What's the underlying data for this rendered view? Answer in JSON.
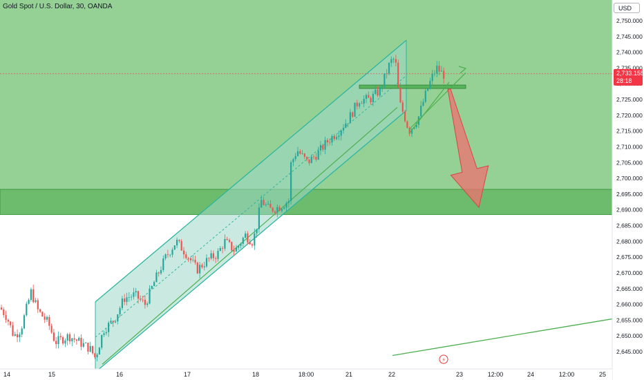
{
  "header": {
    "symbol_title": "Gold Spot / U.S. Dollar, 30, OANDA",
    "currency_button": "USD"
  },
  "price_tag": {
    "price": "2,733.155",
    "countdown": "28:18"
  },
  "colors": {
    "bull": "#26a69a",
    "bear": "#ef5350",
    "bg_green": "#8fcf8f",
    "zone_green": "#6dbb6d",
    "channel": "#2bb5a0",
    "channel_fill": "#9ed8c8",
    "trendline": "#4caf50",
    "arrow_red": "#f07070",
    "price_tag_bg": "#f23645"
  },
  "chart_data": {
    "type": "candlestick",
    "title": "Gold Spot / U.S. Dollar, 30, OANDA",
    "ylim": [
      2642,
      2757
    ],
    "y_ticks": [
      "2,750.000",
      "2,745.000",
      "2,740.000",
      "2,735.000",
      "2,730.000",
      "2,725.000",
      "2,720.000",
      "2,715.000",
      "2,710.000",
      "2,705.000",
      "2,700.000",
      "2,695.000",
      "2,690.000",
      "2,685.000",
      "2,680.000",
      "2,675.000",
      "2,670.000",
      "2,665.000",
      "2,660.000",
      "2,655.000",
      "2,650.000",
      "2,645.000"
    ],
    "y_values": [
      2750,
      2745,
      2740,
      2735,
      2730,
      2725,
      2720,
      2715,
      2710,
      2705,
      2700,
      2695,
      2690,
      2685,
      2680,
      2675,
      2670,
      2665,
      2660,
      2655,
      2650,
      2645
    ],
    "x_ticks": [
      "14",
      "15",
      "16",
      "17",
      "18",
      "18:00",
      "21",
      "22",
      "23",
      "12:00",
      "24",
      "12:00",
      "25"
    ],
    "x_tick_pos": [
      10,
      75,
      173,
      271,
      370,
      443,
      505,
      567,
      665,
      717,
      768,
      820,
      872
    ],
    "hidden_y_label": "2,730.000",
    "background_zone": {
      "from": 2757,
      "to": 2642
    },
    "support_zone": {
      "top": 2696.5,
      "bottom": 2688.5
    },
    "resistance_box": {
      "top": 2729.6,
      "bottom": 2728.7
    },
    "channel": {
      "upper": [
        [
          138,
          2660.8
        ],
        [
          588,
          2743.8
        ]
      ],
      "lower": [
        [
          138,
          2638.5
        ],
        [
          588,
          2721.5
        ]
      ],
      "mid": [
        [
          138,
          2649.6
        ],
        [
          588,
          2732.6
        ]
      ]
    },
    "trendline": [
      [
        568,
        2643.8
      ],
      [
        886,
        2655.4
      ]
    ],
    "triangle": {
      "upper": [
        [
          592,
          2715.5
        ],
        [
          674,
          2733.5
        ]
      ],
      "lower": [
        [
          592,
          2714.2
        ],
        [
          650,
          2730.5
        ]
      ]
    },
    "forecast_arrow": {
      "from": [
        650,
        2728.3
      ],
      "to": [
        693,
        2690.8
      ]
    },
    "candle_path": [
      [
        0,
        2659
      ],
      [
        10,
        2656
      ],
      [
        20,
        2650
      ],
      [
        30,
        2652
      ],
      [
        45,
        2664
      ],
      [
        55,
        2658
      ],
      [
        70,
        2654
      ],
      [
        80,
        2648
      ],
      [
        100,
        2650
      ],
      [
        115,
        2648
      ],
      [
        130,
        2646
      ],
      [
        138,
        2643
      ],
      [
        150,
        2652
      ],
      [
        165,
        2655
      ],
      [
        180,
        2662
      ],
      [
        195,
        2663
      ],
      [
        210,
        2660
      ],
      [
        225,
        2668
      ],
      [
        240,
        2675
      ],
      [
        255,
        2680
      ],
      [
        270,
        2676
      ],
      [
        285,
        2671
      ],
      [
        300,
        2674
      ],
      [
        315,
        2676
      ],
      [
        325,
        2680
      ],
      [
        340,
        2677
      ],
      [
        355,
        2682
      ],
      [
        365,
        2680
      ],
      [
        370,
        2683
      ],
      [
        378,
        2693
      ],
      [
        390,
        2690
      ],
      [
        405,
        2691
      ],
      [
        418,
        2693
      ],
      [
        420,
        2704
      ],
      [
        430,
        2709
      ],
      [
        445,
        2705
      ],
      [
        460,
        2708
      ],
      [
        475,
        2712
      ],
      [
        490,
        2715
      ],
      [
        505,
        2719
      ],
      [
        520,
        2725
      ],
      [
        535,
        2725
      ],
      [
        550,
        2728
      ],
      [
        565,
        2737
      ],
      [
        572,
        2738
      ],
      [
        578,
        2724
      ],
      [
        585,
        2720
      ],
      [
        592,
        2715
      ],
      [
        605,
        2719
      ],
      [
        615,
        2726
      ],
      [
        625,
        2732
      ],
      [
        632,
        2735
      ],
      [
        640,
        2733.2
      ],
      [
        645,
        2732.5
      ]
    ]
  }
}
